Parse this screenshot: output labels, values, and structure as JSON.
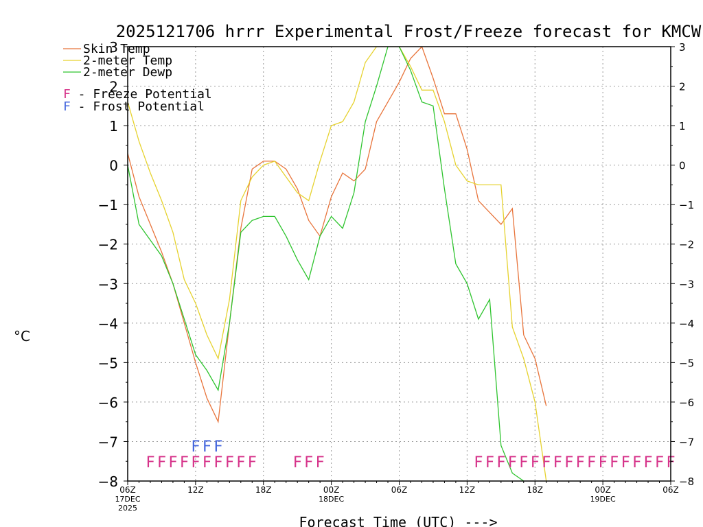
{
  "chart_data": {
    "type": "line",
    "title": "2025121706 hrrr Experimental Frost/Freeze forecast for KMCW",
    "ylabel": "°C",
    "xlabel": "Forecast Time (UTC) --->",
    "ylim": [
      -8,
      3
    ],
    "xlim_hours": [
      0,
      48
    ],
    "grid": true,
    "y_ticks": [
      -8,
      -7,
      -6,
      -5,
      -4,
      -3,
      -2,
      -1,
      0,
      1,
      2,
      3
    ],
    "x_ticks": [
      {
        "h": 0,
        "label": "06Z",
        "sub": "17DEC",
        "sub2": "2025"
      },
      {
        "h": 6,
        "label": "12Z",
        "sub": "",
        "sub2": ""
      },
      {
        "h": 12,
        "label": "18Z",
        "sub": "",
        "sub2": ""
      },
      {
        "h": 18,
        "label": "00Z",
        "sub": "18DEC",
        "sub2": ""
      },
      {
        "h": 24,
        "label": "06Z",
        "sub": "",
        "sub2": ""
      },
      {
        "h": 30,
        "label": "12Z",
        "sub": "",
        "sub2": ""
      },
      {
        "h": 36,
        "label": "18Z",
        "sub": "",
        "sub2": ""
      },
      {
        "h": 42,
        "label": "00Z",
        "sub": "19DEC",
        "sub2": ""
      },
      {
        "h": 48,
        "label": "06Z",
        "sub": "",
        "sub2": ""
      }
    ],
    "series": [
      {
        "name": "Skin Temp",
        "color": "#e8743b",
        "x": [
          0,
          1,
          2,
          3,
          4,
          5,
          6,
          7,
          8,
          9,
          10,
          11,
          12,
          13,
          14,
          15,
          16,
          17,
          18,
          19,
          20,
          21,
          22,
          23,
          24,
          25,
          26,
          27,
          28,
          29,
          30,
          31,
          32,
          33,
          34,
          35,
          36,
          37
        ],
        "values": [
          0.3,
          -0.8,
          -1.5,
          -2.2,
          -3.0,
          -4.0,
          -5.0,
          -5.9,
          -6.5,
          -4.0,
          -1.6,
          -0.1,
          0.1,
          0.1,
          -0.1,
          -0.6,
          -1.4,
          -1.8,
          -0.8,
          -0.2,
          -0.4,
          -0.1,
          1.1,
          1.6,
          2.1,
          2.7,
          3.0,
          2.2,
          1.3,
          1.3,
          0.4,
          -0.9,
          -1.2,
          -1.5,
          -1.1,
          -4.3,
          -4.9,
          -6.1
        ]
      },
      {
        "name": "2-meter Temp",
        "color": "#e6d22e",
        "x": [
          0,
          1,
          2,
          3,
          4,
          5,
          6,
          7,
          8,
          9,
          10,
          11,
          12,
          13,
          14,
          15,
          16,
          17,
          18,
          19,
          20,
          21,
          22,
          23,
          24,
          25,
          26,
          27,
          28,
          29,
          30,
          31,
          32,
          33,
          34,
          35,
          36,
          37
        ],
        "values": [
          1.6,
          0.6,
          -0.2,
          -0.9,
          -1.7,
          -2.9,
          -3.5,
          -4.3,
          -4.9,
          -3.4,
          -0.9,
          -0.3,
          0.0,
          0.1,
          -0.3,
          -0.7,
          -0.9,
          0.1,
          1.0,
          1.1,
          1.6,
          2.6,
          3.0,
          3.0,
          3.0,
          2.5,
          1.9,
          1.9,
          1.1,
          0.0,
          -0.4,
          -0.5,
          -0.5,
          -0.5,
          -4.1,
          -4.9,
          -6.0,
          -8.0
        ]
      },
      {
        "name": "2-meter Dewp",
        "color": "#2ec42e",
        "x": [
          0,
          1,
          2,
          3,
          4,
          5,
          6,
          7,
          8,
          9,
          10,
          11,
          12,
          13,
          14,
          15,
          16,
          17,
          18,
          19,
          20,
          21,
          22,
          23,
          24,
          25,
          26,
          27,
          28,
          29,
          30,
          31,
          32,
          33,
          34,
          35
        ],
        "values": [
          0.0,
          -1.5,
          -1.9,
          -2.3,
          -3.0,
          -3.9,
          -4.8,
          -5.2,
          -5.7,
          -4.0,
          -1.7,
          -1.4,
          -1.3,
          -1.3,
          -1.8,
          -2.4,
          -2.9,
          -1.8,
          -1.3,
          -1.6,
          -0.7,
          1.1,
          2.0,
          3.0,
          3.0,
          2.4,
          1.6,
          1.5,
          -0.6,
          -2.5,
          -3.0,
          -3.9,
          -3.4,
          -7.1,
          -7.8,
          -8.0
        ]
      }
    ],
    "freeze_potential": {
      "letter": "F",
      "color": "#d6338a",
      "hours": [
        2,
        3,
        4,
        5,
        6,
        7,
        8,
        9,
        10,
        11,
        15,
        16,
        17,
        31,
        32,
        33,
        34,
        35,
        36,
        37,
        38,
        39,
        40,
        41,
        42,
        43,
        44,
        45,
        46,
        47,
        48
      ]
    },
    "frost_potential": {
      "letter": "F",
      "color": "#4466dd",
      "hours": [
        6,
        7,
        8
      ]
    },
    "legend": [
      {
        "label": "Skin Temp",
        "color": "#e8743b",
        "kind": "line"
      },
      {
        "label": "2-meter Temp",
        "color": "#e6d22e",
        "kind": "line"
      },
      {
        "label": "2-meter Dewp",
        "color": "#2ec42e",
        "kind": "line"
      },
      {
        "label": "F - Freeze Potential",
        "color": "#d6338a",
        "kind": "text"
      },
      {
        "label": "F - Frost Potential",
        "color": "#4466dd",
        "kind": "text"
      }
    ],
    "legend_position": "top-left"
  }
}
